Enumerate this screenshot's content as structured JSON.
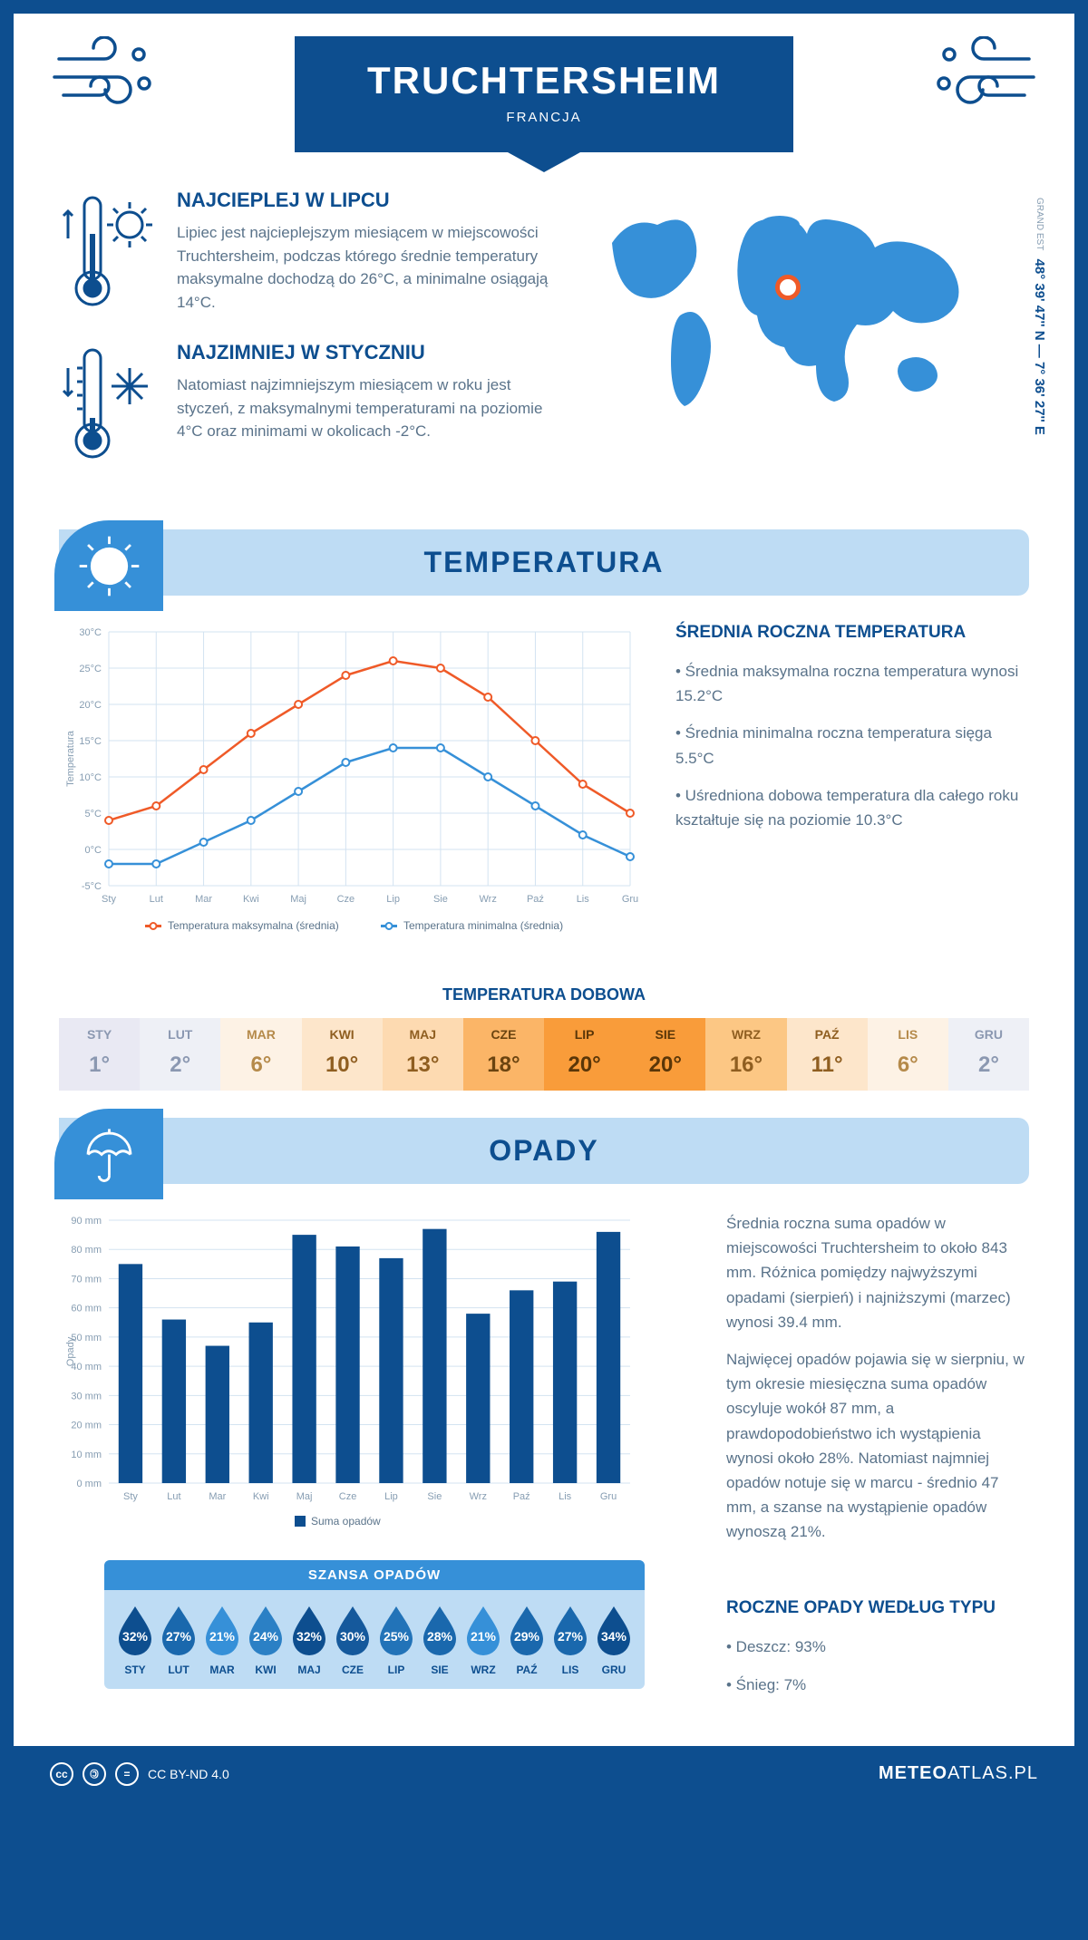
{
  "header": {
    "city": "TRUCHTERSHEIM",
    "country": "FRANCJA",
    "coords": "48° 39' 47'' N — 7° 36' 27'' E",
    "region": "GRAND EST"
  },
  "intro": {
    "warm_title": "NAJCIEPLEJ W LIPCU",
    "warm_text": "Lipiec jest najcieplejszym miesiącem w miejscowości Truchtersheim, podczas którego średnie temperatury maksymalne dochodzą do 26°C, a minimalne osiągają 14°C.",
    "cold_title": "NAJZIMNIEJ W STYCZNIU",
    "cold_text": "Natomiast najzimniejszym miesiącem w roku jest styczeń, z maksymalnymi temperaturami na poziomie 4°C oraz minimami w okolicach -2°C."
  },
  "temperature_section": {
    "title": "TEMPERATURA",
    "side_title": "ŚREDNIA ROCZNA TEMPERATURA",
    "bullets": [
      "• Średnia maksymalna roczna temperatura wynosi 15.2°C",
      "• Średnia minimalna roczna temperatura sięga 5.5°C",
      "• Uśredniona dobowa temperatura dla całego roku kształtuje się na poziomie 10.3°C"
    ],
    "chart": {
      "months": [
        "Sty",
        "Lut",
        "Mar",
        "Kwi",
        "Maj",
        "Cze",
        "Lip",
        "Sie",
        "Wrz",
        "Paź",
        "Lis",
        "Gru"
      ],
      "max_series": [
        4,
        6,
        11,
        16,
        20,
        24,
        26,
        25,
        21,
        15,
        9,
        5
      ],
      "min_series": [
        -2,
        -2,
        1,
        4,
        8,
        12,
        14,
        14,
        10,
        6,
        2,
        -1
      ],
      "max_color": "#ef5a28",
      "min_color": "#3690d8",
      "ylim": [
        -5,
        30
      ],
      "ytick_step": 5,
      "ylabel": "Temperatura",
      "legend_max": "Temperatura maksymalna (średnia)",
      "legend_min": "Temperatura minimalna (średnia)"
    },
    "daily_title": "TEMPERATURA DOBOWA",
    "daily": {
      "months": [
        "STY",
        "LUT",
        "MAR",
        "KWI",
        "MAJ",
        "CZE",
        "LIP",
        "SIE",
        "WRZ",
        "PAŹ",
        "LIS",
        "GRU"
      ],
      "values": [
        "1°",
        "2°",
        "6°",
        "10°",
        "13°",
        "18°",
        "20°",
        "20°",
        "16°",
        "11°",
        "6°",
        "2°"
      ],
      "bg_colors": [
        "#e9e9f3",
        "#eef0f6",
        "#fdf2e5",
        "#fde6cb",
        "#fddab1",
        "#fbb567",
        "#f99c3a",
        "#f99c3a",
        "#fcc784",
        "#fde6cb",
        "#fdf2e5",
        "#eef0f6"
      ],
      "text_colors": [
        "#8b98b1",
        "#8b98b1",
        "#b58a4a",
        "#8f5e20",
        "#8f5e20",
        "#6b4410",
        "#5a3608",
        "#5a3608",
        "#8f5e20",
        "#8f5e20",
        "#b58a4a",
        "#8b98b1"
      ]
    }
  },
  "precip_section": {
    "title": "OPADY",
    "side_p1": "Średnia roczna suma opadów w miejscowości Truchtersheim to około 843 mm. Różnica pomiędzy najwyższymi opadami (sierpień) i najniższymi (marzec) wynosi 39.4 mm.",
    "side_p2": "Najwięcej opadów pojawia się w sierpniu, w tym okresie miesięczna suma opadów oscyluje wokół 87 mm, a prawdopodobieństwo ich wystąpienia wynosi około 28%. Natomiast najmniej opadów notuje się w marcu - średnio 47 mm, a szanse na wystąpienie opadów wynoszą 21%.",
    "chart": {
      "months": [
        "Sty",
        "Lut",
        "Mar",
        "Kwi",
        "Maj",
        "Cze",
        "Lip",
        "Sie",
        "Wrz",
        "Paź",
        "Lis",
        "Gru"
      ],
      "values": [
        75,
        56,
        47,
        55,
        85,
        81,
        77,
        87,
        58,
        66,
        69,
        86
      ],
      "bar_color": "#0d4e8f",
      "ylim": [
        0,
        90
      ],
      "ytick_step": 10,
      "ylabel": "Opady",
      "legend": "Suma opadów"
    },
    "chance_title": "SZANSA OPADÓW",
    "chance": {
      "months": [
        "STY",
        "LUT",
        "MAR",
        "KWI",
        "MAJ",
        "CZE",
        "LIP",
        "SIE",
        "WRZ",
        "PAŹ",
        "LIS",
        "GRU"
      ],
      "values": [
        32,
        27,
        21,
        24,
        32,
        30,
        25,
        28,
        21,
        29,
        27,
        34
      ],
      "drop_colors": [
        "#0d4e8f",
        "#1a68ad",
        "#3690d8",
        "#2b80c5",
        "#0d4e8f",
        "#15599c",
        "#2273b8",
        "#1a68ad",
        "#3690d8",
        "#1a68ad",
        "#1a68ad",
        "#0d4e8f"
      ]
    },
    "type_title": "ROCZNE OPADY WEDŁUG TYPU",
    "type_bullets": [
      "• Deszcz: 93%",
      "• Śnieg: 7%"
    ]
  },
  "footer": {
    "license": "CC BY-ND 4.0",
    "site_bold": "METEO",
    "site_rest": "ATLAS.PL"
  }
}
